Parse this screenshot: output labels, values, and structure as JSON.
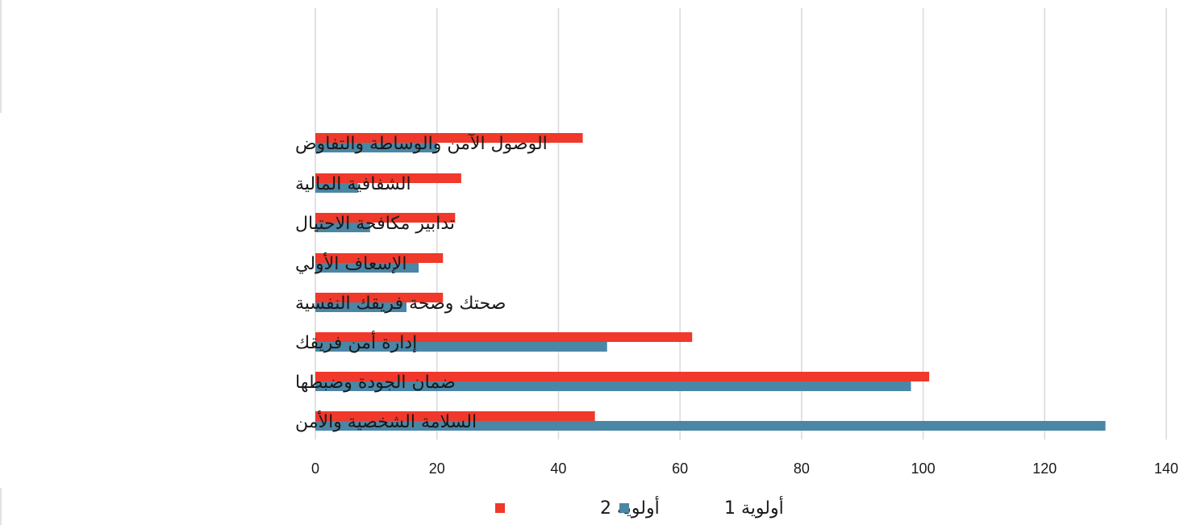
{
  "chart_data": {
    "type": "bar",
    "orientation": "horizontal",
    "categories": [
      "الوصول الآمن والوساطة والتفاوض",
      "الشفافية المالية",
      "تدابير مكافحة الاحتيال",
      "الإسعاف الأولي",
      "صحتك وصحة فريقك النفسية",
      "إدارة أمن فريقك",
      "ضمان الجودة وضبطها",
      "السلامة الشخصية والأمن"
    ],
    "series": [
      {
        "name": "أولوية 2",
        "color": "#f0382b",
        "values": [
          44,
          24,
          23,
          21,
          21,
          62,
          101,
          46
        ]
      },
      {
        "name": "أولوية 1",
        "color": "#4a86a6",
        "values": [
          20,
          7,
          9,
          17,
          15,
          48,
          98,
          130
        ]
      }
    ],
    "x_ticks": [
      "0",
      "20",
      "40",
      "60",
      "80",
      "100",
      "120",
      "140"
    ],
    "xlim": [
      0,
      140
    ],
    "grid": true,
    "legend_position": "bottom"
  }
}
